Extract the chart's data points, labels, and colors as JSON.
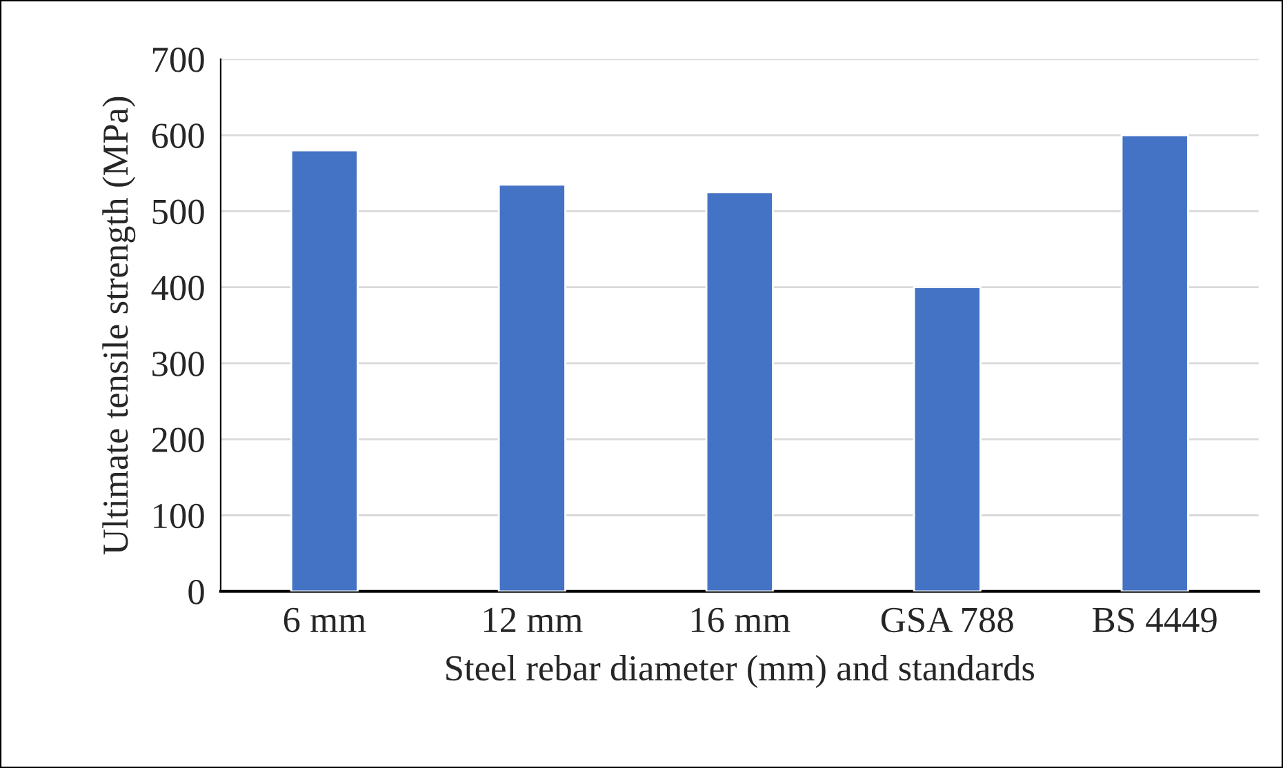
{
  "chart_data": {
    "type": "bar",
    "xlabel": "Steel rebar diameter (mm) and standards",
    "ylabel": "Ultimate tensile strength (MPa)",
    "categories": [
      "6 mm",
      "12 mm",
      "16 mm",
      "GSA 788",
      "BS 4449"
    ],
    "values": [
      580,
      535,
      525,
      400,
      600
    ],
    "color": "#4472c4",
    "ylim": [
      0,
      700
    ],
    "yticks": [
      0,
      100,
      200,
      300,
      400,
      500,
      600,
      700
    ],
    "grid": "y",
    "legend": false
  }
}
